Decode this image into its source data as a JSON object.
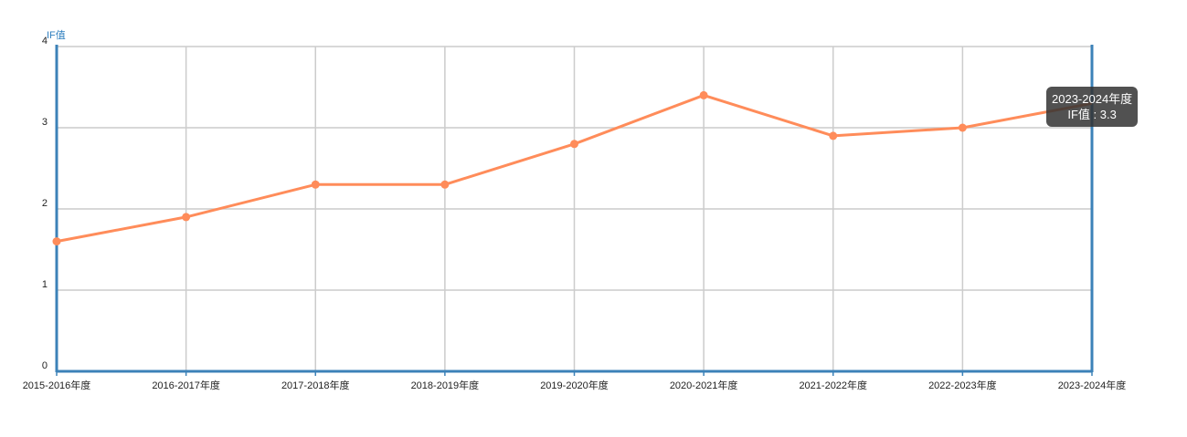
{
  "chart_data": {
    "type": "line",
    "ylabel": "IF值",
    "categories": [
      "2015-2016年度",
      "2016-2017年度",
      "2017-2018年度",
      "2018-2019年度",
      "2019-2020年度",
      "2020-2021年度",
      "2021-2022年度",
      "2022-2023年度",
      "2023-2024年度"
    ],
    "series": [
      {
        "values": [
          1.6,
          1.9,
          2.3,
          2.3,
          2.8,
          3.4,
          2.9,
          3.0,
          3.3
        ]
      }
    ],
    "ylim": [
      0,
      4
    ],
    "yticks": [
      0,
      1,
      2,
      3,
      4
    ],
    "grid": true,
    "colors": {
      "line": "#ff8c5a",
      "axis": "#3c82b8",
      "grid": "#cccccc"
    }
  },
  "tooltip": {
    "category": "2023-2024年度",
    "text": "IF值 : 3.3"
  }
}
